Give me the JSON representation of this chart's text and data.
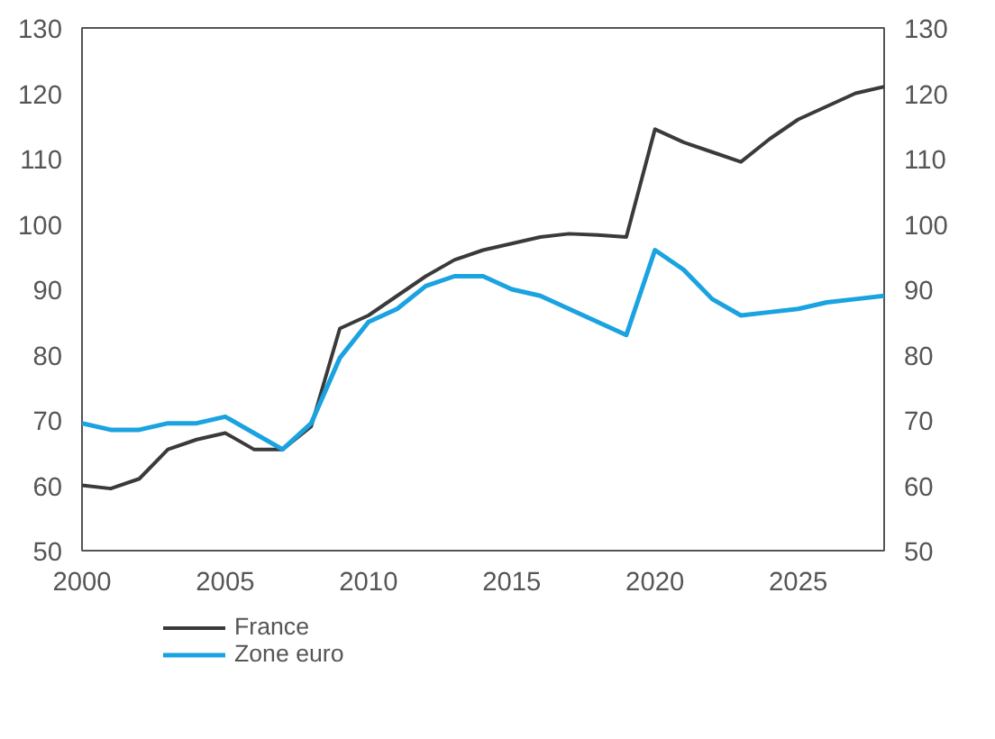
{
  "chart_data": {
    "type": "line",
    "x": [
      2000,
      2001,
      2002,
      2003,
      2004,
      2005,
      2006,
      2007,
      2008,
      2009,
      2010,
      2011,
      2012,
      2013,
      2014,
      2015,
      2016,
      2017,
      2018,
      2019,
      2020,
      2021,
      2022,
      2023,
      2024,
      2025,
      2026,
      2027,
      2028
    ],
    "series": [
      {
        "name": "France",
        "color": "#3a3a3a",
        "values": [
          60,
          59.5,
          61,
          65.5,
          67,
          68,
          65.5,
          65.5,
          69,
          84,
          86,
          89,
          92,
          94.5,
          96,
          97,
          98,
          98.5,
          98.3,
          98,
          114.5,
          112.5,
          111,
          109.5,
          113,
          116,
          118,
          120,
          121
        ]
      },
      {
        "name": "Zone euro",
        "color": "#1aa3e0",
        "values": [
          69.5,
          68.5,
          68.5,
          69.5,
          69.5,
          70.5,
          68,
          65.5,
          69.5,
          79.5,
          85,
          87,
          90.5,
          92,
          92,
          90,
          89,
          87,
          85,
          83,
          96,
          93,
          88.5,
          86,
          86.5,
          87,
          88,
          88.5,
          89
        ]
      }
    ],
    "xlim": [
      2000,
      2028
    ],
    "xticks": [
      2000,
      2005,
      2010,
      2015,
      2020,
      2025
    ],
    "ylim": [
      50,
      130
    ],
    "yticks": [
      50,
      60,
      70,
      80,
      90,
      100,
      110,
      120,
      130
    ],
    "y2lim": [
      50,
      130
    ],
    "y2ticks": [
      50,
      60,
      70,
      80,
      90,
      100,
      110,
      120,
      130
    ],
    "legend": "bottom",
    "grid": false,
    "line_style": "solid"
  }
}
